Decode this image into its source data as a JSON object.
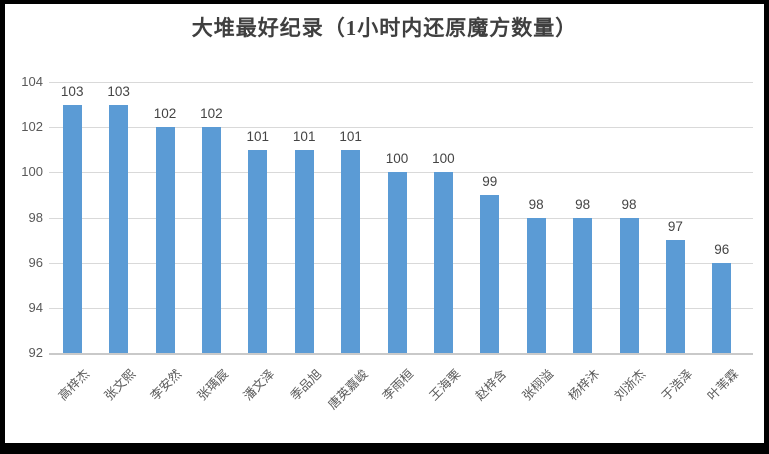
{
  "chart_data": {
    "type": "bar",
    "title": "大堆最好纪录（1小时内还原魔方数量）",
    "categories": [
      "高梓杰",
      "张文熙",
      "李安然",
      "张瑀宸",
      "潘文泽",
      "季品旭",
      "唐英嘉峻",
      "李雨桓",
      "王海栗",
      "赵梓含",
      "张栩溢",
      "杨梓沐",
      "刘浙杰",
      "于浩泽",
      "叶苇霖"
    ],
    "values": [
      103,
      103,
      102,
      102,
      101,
      101,
      101,
      100,
      100,
      99,
      98,
      98,
      98,
      97,
      96
    ],
    "xlabel": "",
    "ylabel": "",
    "ylim": [
      92,
      104
    ],
    "yticks": [
      92,
      94,
      96,
      98,
      100,
      102,
      104
    ],
    "grid": true,
    "legend": false,
    "data_labels": true,
    "colors": {
      "bar": "#5b9bd5",
      "gridline": "#d9d9d9",
      "axis_line": "#c9c9c9",
      "title_text": "#3f3f3f",
      "tick_text": "#595959",
      "data_label_text": "#444444",
      "frame_border": "#000000",
      "background": "#ffffff"
    }
  }
}
